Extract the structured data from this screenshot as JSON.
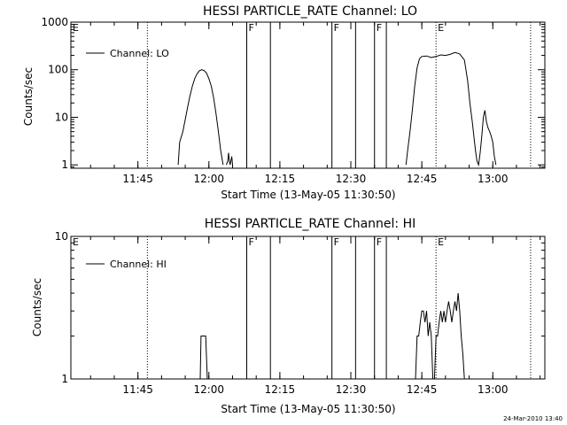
{
  "timestamp": "24-Mar-2010 13:40",
  "chart_data": [
    {
      "type": "line",
      "title": "HESSI PARTICLE_RATE Channel: LO",
      "xlabel": "Start Time (13-May-05 11:30:50)",
      "ylabel": "Counts/sec",
      "yscale": "log",
      "ylim": [
        0.85,
        1000
      ],
      "xlim": [
        "11:30:50",
        "13:11:00"
      ],
      "x_ticks": [
        "11:45",
        "12:00",
        "12:15",
        "12:30",
        "12:45",
        "13:00"
      ],
      "y_ticks": [
        "1",
        "10",
        "100",
        "1000"
      ],
      "legend": {
        "label": "Channel: LO",
        "position": "top-left"
      },
      "series": [
        {
          "name": "Channel: LO",
          "x": [
            "11:53:30",
            "11:53:50",
            "11:54:30",
            "11:55:00",
            "11:55:30",
            "11:56:00",
            "11:56:30",
            "11:57:00",
            "11:57:30",
            "11:58:00",
            "11:58:30",
            "11:59:00",
            "11:59:30",
            "12:00:00",
            "12:00:30",
            "12:01:00",
            "12:01:30",
            "12:02:00",
            "12:02:30",
            "12:03:00",
            "12:03:20",
            "12:03:40",
            "12:04:00",
            "12:04:10",
            "12:04:20",
            "12:04:30",
            "12:04:50",
            "12:05:00"
          ],
          "values": [
            1,
            3,
            5,
            9,
            16,
            28,
            45,
            65,
            82,
            95,
            100,
            96,
            85,
            65,
            45,
            26,
            12,
            5,
            2,
            1,
            null,
            1,
            1.2,
            1.8,
            1.2,
            1,
            1.5,
            1
          ]
        },
        {
          "name": "Channel: LO",
          "x": [
            "12:41:40",
            "12:42:00",
            "12:42:30",
            "12:43:00",
            "12:43:30",
            "12:44:00",
            "12:44:30",
            "12:45:00",
            "12:46:00",
            "12:47:00",
            "12:48:00",
            "12:49:00",
            "12:50:00",
            "12:51:00",
            "12:52:00",
            "12:53:00",
            "12:54:00",
            "12:54:40",
            "12:55:10",
            "12:55:40",
            "12:56:00",
            "12:56:20",
            "12:56:40",
            "12:57:00",
            "12:57:20",
            "12:57:40",
            "12:58:00",
            "12:58:20",
            "12:58:40",
            "12:59:00",
            "12:59:20",
            "12:59:40",
            "13:00:00",
            "13:00:20",
            "13:00:40"
          ],
          "values": [
            1,
            2,
            5,
            14,
            45,
            110,
            170,
            190,
            195,
            180,
            190,
            205,
            200,
            210,
            230,
            215,
            160,
            60,
            20,
            8,
            4,
            2,
            1.2,
            1,
            1.8,
            4,
            10,
            14,
            8,
            6,
            5,
            4,
            3,
            1.5,
            1
          ]
        }
      ],
      "markers": [
        {
          "label": "E",
          "time": "11:30:50",
          "style": "dotted"
        },
        {
          "label": "",
          "time": "11:47:00",
          "style": "dotted"
        },
        {
          "label": "F",
          "time": "12:08:00",
          "style": "solid"
        },
        {
          "label": "",
          "time": "12:13:00",
          "style": "solid"
        },
        {
          "label": "F",
          "time": "12:26:00",
          "style": "solid"
        },
        {
          "label": "",
          "time": "12:31:00",
          "style": "solid"
        },
        {
          "label": "F",
          "time": "12:35:00",
          "style": "solid"
        },
        {
          "label": "",
          "time": "12:37:30",
          "style": "solid"
        },
        {
          "label": "E",
          "time": "12:48:00",
          "style": "dotted"
        },
        {
          "label": "",
          "time": "13:08:00",
          "style": "dotted"
        }
      ]
    },
    {
      "type": "line",
      "title": "HESSI PARTICLE_RATE Channel: HI",
      "xlabel": "Start Time (13-May-05 11:30:50)",
      "ylabel": "Counts/sec",
      "yscale": "log",
      "ylim": [
        1,
        10
      ],
      "xlim": [
        "11:30:50",
        "13:11:00"
      ],
      "x_ticks": [
        "11:45",
        "12:00",
        "12:15",
        "12:30",
        "12:45",
        "13:00"
      ],
      "y_ticks": [
        "1",
        "10"
      ],
      "legend": {
        "label": "Channel: HI",
        "position": "top-left"
      },
      "series": [
        {
          "name": "Channel: HI",
          "x": [
            "11:58:10",
            "11:58:20",
            "11:58:40",
            "11:59:00",
            "11:59:20",
            "11:59:40"
          ],
          "values": [
            1,
            2,
            2,
            2,
            2,
            1
          ]
        },
        {
          "name": "Channel: HI",
          "x": [
            "12:43:40",
            "12:44:00",
            "12:44:20",
            "12:44:40",
            "12:45:00",
            "12:45:20",
            "12:45:40",
            "12:46:00",
            "12:46:20",
            "12:46:40",
            "12:47:00",
            "12:47:20",
            "12:47:40",
            "12:48:00",
            "12:48:20",
            "12:48:40",
            "12:49:00",
            "12:49:20",
            "12:49:40",
            "12:50:00",
            "12:50:20",
            "12:50:40",
            "12:51:00",
            "12:51:20",
            "12:51:40",
            "12:52:00",
            "12:52:20",
            "12:52:40",
            "12:53:00",
            "12:53:20",
            "12:53:40",
            "12:54:00",
            "12:54:20"
          ],
          "values": [
            1,
            2,
            2,
            2.5,
            3,
            3,
            2.5,
            3,
            2,
            2.5,
            2,
            1,
            1,
            2,
            2,
            2.5,
            3,
            2.5,
            3,
            2.5,
            3,
            3.5,
            3,
            2.5,
            3,
            3.5,
            3,
            4,
            3,
            2,
            1.5,
            1,
            1
          ]
        }
      ],
      "markers": [
        {
          "label": "E",
          "time": "11:30:50",
          "style": "dotted"
        },
        {
          "label": "",
          "time": "11:47:00",
          "style": "dotted"
        },
        {
          "label": "F",
          "time": "12:08:00",
          "style": "solid"
        },
        {
          "label": "",
          "time": "12:13:00",
          "style": "solid"
        },
        {
          "label": "F",
          "time": "12:26:00",
          "style": "solid"
        },
        {
          "label": "",
          "time": "12:31:00",
          "style": "solid"
        },
        {
          "label": "F",
          "time": "12:35:00",
          "style": "solid"
        },
        {
          "label": "",
          "time": "12:37:30",
          "style": "solid"
        },
        {
          "label": "E",
          "time": "12:48:00",
          "style": "dotted"
        },
        {
          "label": "",
          "time": "13:08:00",
          "style": "dotted"
        }
      ]
    }
  ]
}
